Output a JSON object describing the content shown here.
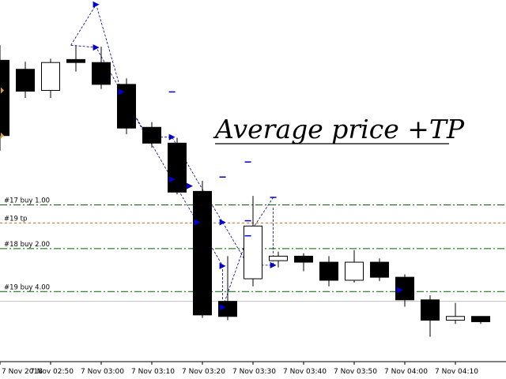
{
  "chart_data": {
    "type": "candlestick",
    "title": "Average price  +TP",
    "colors": {
      "background": "#ffffff",
      "bull_body": "#ffffff",
      "bear_body": "#000000",
      "outline": "#000000",
      "buy_level": "#006400",
      "tp_level": "#d2691e",
      "price_line": "#c0c0c0",
      "trade_line": "#00008b",
      "arrow": "#0000cd",
      "marker": "#daa520"
    },
    "x_labels": [
      "7 Nov 2018",
      "7 Nov 02:50",
      "7 Nov 03:00",
      "7 Nov 03:10",
      "7 Nov 03:20",
      "7 Nov 03:30",
      "7 Nov 03:40",
      "7 Nov 03:50",
      "7 Nov 04:00",
      "7 Nov 04:10"
    ],
    "ylim": [
      0,
      480
    ],
    "candles": [
      {
        "o": 400,
        "h": 420,
        "l": 280,
        "c": 300
      },
      {
        "o": 388,
        "h": 398,
        "l": 350,
        "c": 359
      },
      {
        "o": 360,
        "h": 402,
        "l": 350,
        "c": 397
      },
      {
        "o": 401,
        "h": 420,
        "l": 385,
        "c": 397
      },
      {
        "o": 397,
        "h": 418,
        "l": 362,
        "c": 368
      },
      {
        "o": 368,
        "h": 376,
        "l": 302,
        "c": 310
      },
      {
        "o": 311,
        "h": 318,
        "l": 284,
        "c": 290
      },
      {
        "o": 290,
        "h": 297,
        "l": 222,
        "c": 225
      },
      {
        "o": 226,
        "h": 240,
        "l": 58,
        "c": 62
      },
      {
        "o": 80,
        "h": 140,
        "l": 55,
        "c": 60
      },
      {
        "o": 110,
        "h": 220,
        "l": 100,
        "c": 180
      },
      {
        "o": 134,
        "h": 146,
        "l": 125,
        "c": 140
      },
      {
        "o": 140,
        "h": 144,
        "l": 120,
        "c": 132
      },
      {
        "o": 132,
        "h": 140,
        "l": 100,
        "c": 108
      },
      {
        "o": 108,
        "h": 148,
        "l": 105,
        "c": 132
      },
      {
        "o": 132,
        "h": 137,
        "l": 107,
        "c": 112
      },
      {
        "o": 112,
        "h": 116,
        "l": 73,
        "c": 82
      },
      {
        "o": 82,
        "h": 88,
        "l": 33,
        "c": 55
      },
      {
        "o": 55,
        "h": 78,
        "l": 50,
        "c": 60
      },
      {
        "o": 60,
        "h": 60,
        "l": 50,
        "c": 53
      }
    ],
    "levels": [
      {
        "label": "#17 buy 1.00",
        "y": 208,
        "kind": "buy"
      },
      {
        "label": "#19 tp",
        "y": 184,
        "kind": "tp"
      },
      {
        "label": "#18 buy 2.00",
        "y": 150,
        "kind": "buy"
      },
      {
        "label": "#19 buy 4.00",
        "y": 93,
        "kind": "buy"
      }
    ],
    "current_price": 80,
    "arrows": [
      {
        "i": 3.8,
        "y": 474
      },
      {
        "i": 3.8,
        "y": 417
      },
      {
        "i": 4.8,
        "y": 358
      },
      {
        "i": 6.8,
        "y": 298
      },
      {
        "i": 6.8,
        "y": 242
      },
      {
        "i": 7.5,
        "y": 233
      },
      {
        "i": 7.8,
        "y": 185
      },
      {
        "i": 8.8,
        "y": 185
      },
      {
        "i": 8.8,
        "y": 127
      },
      {
        "i": 8.8,
        "y": 72
      },
      {
        "i": 10.8,
        "y": 128
      },
      {
        "i": 15.8,
        "y": 95
      }
    ],
    "dashes": [
      {
        "i": 6.8,
        "y": 358
      },
      {
        "i": 9.8,
        "y": 265
      },
      {
        "i": 8.8,
        "y": 245
      },
      {
        "i": 9.8,
        "y": 187
      },
      {
        "i": 9.8,
        "y": 167
      },
      {
        "i": 10.8,
        "y": 218
      }
    ],
    "trade_lines": [
      [
        [
          2.8,
          420
        ],
        [
          3.8,
          474
        ],
        [
          4.8,
          358
        ],
        [
          5.8,
          300
        ],
        [
          6.8,
          242
        ],
        [
          7.8,
          185
        ],
        [
          8.8,
          127
        ],
        [
          8.8,
          72
        ],
        [
          9.8,
          167
        ],
        [
          10.8,
          218
        ]
      ],
      [
        [
          2.8,
          420
        ],
        [
          3.8,
          417
        ],
        [
          4.8,
          358
        ],
        [
          5.8,
          298
        ],
        [
          6.8,
          298
        ],
        [
          7.8,
          240
        ],
        [
          8.8,
          185
        ],
        [
          9.8,
          128
        ],
        [
          10.8,
          128
        ]
      ],
      [
        [
          10.8,
          128
        ],
        [
          10.8,
          205
        ]
      ]
    ]
  }
}
